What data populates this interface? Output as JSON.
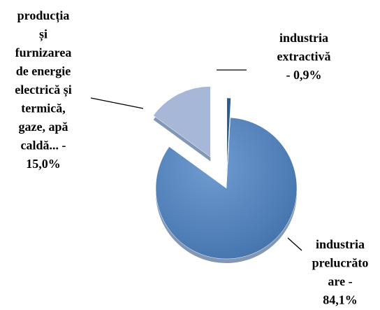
{
  "chart_data": {
    "type": "pie",
    "values": [
      0.9,
      84.1,
      15.0
    ],
    "value_labels": [
      "industria\nextractivă\n- 0,9%",
      "industria\nprelucrăto\nare -\n84,1%",
      "producția\nși\nfurnizarea\nde energie\nelectrică și\ntermică,\ngaze, apă\ncaldă... -\n15,0%"
    ],
    "colors": [
      "#2c5a92",
      "#4f7fba",
      "#a7b7d7"
    ]
  }
}
